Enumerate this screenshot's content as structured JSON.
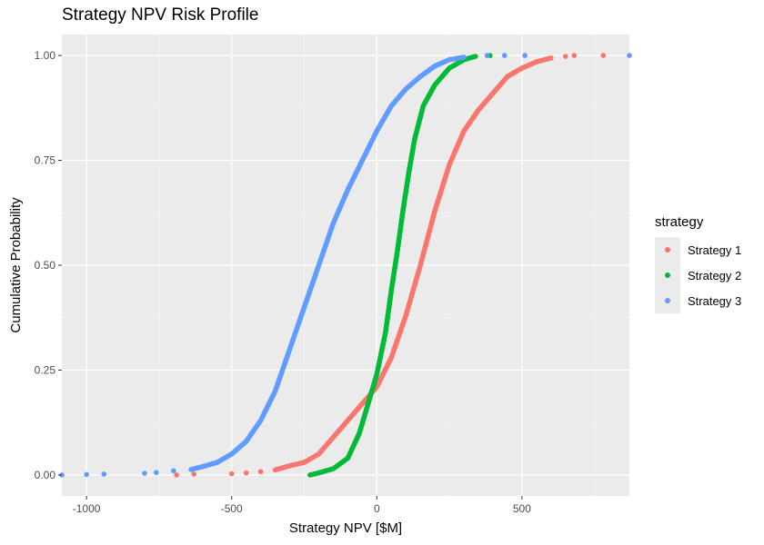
{
  "chart_data": {
    "type": "scatter",
    "title": "Strategy NPV Risk Profile",
    "xlabel": "Strategy NPV [$M]",
    "ylabel": "Cumulative Probability",
    "xlim": [
      -1085,
      870
    ],
    "ylim": [
      -0.05,
      1.05
    ],
    "xticks": [
      -1000,
      -500,
      0,
      500
    ],
    "xtick_labels": [
      "-1000",
      "-500",
      "0",
      "500"
    ],
    "yticks": [
      0.0,
      0.25,
      0.5,
      0.75,
      1.0
    ],
    "ytick_labels": [
      "0.00",
      "0.25",
      "0.50",
      "0.75",
      "1.00"
    ],
    "grid": true,
    "legend_title": "strategy",
    "legend_position": "right",
    "series": [
      {
        "name": "Strategy 1",
        "color": "#F8766D",
        "points": [
          [
            -690,
            0.0
          ],
          [
            -630,
            0.002
          ],
          [
            -500,
            0.003
          ],
          [
            -450,
            0.005
          ],
          [
            -400,
            0.008
          ],
          [
            -350,
            0.012
          ],
          [
            -300,
            0.022
          ],
          [
            -250,
            0.03
          ],
          [
            -200,
            0.05
          ],
          [
            -150,
            0.09
          ],
          [
            -100,
            0.13
          ],
          [
            -50,
            0.17
          ],
          [
            0,
            0.21
          ],
          [
            50,
            0.28
          ],
          [
            100,
            0.38
          ],
          [
            150,
            0.5
          ],
          [
            200,
            0.63
          ],
          [
            250,
            0.74
          ],
          [
            300,
            0.82
          ],
          [
            350,
            0.87
          ],
          [
            400,
            0.91
          ],
          [
            450,
            0.95
          ],
          [
            500,
            0.97
          ],
          [
            550,
            0.985
          ],
          [
            600,
            0.994
          ],
          [
            650,
            0.998
          ],
          [
            680,
            1.0
          ],
          [
            780,
            1.0
          ]
        ]
      },
      {
        "name": "Strategy 2",
        "color": "#00BA38",
        "points": [
          [
            -230,
            0.0
          ],
          [
            -200,
            0.005
          ],
          [
            -150,
            0.015
          ],
          [
            -100,
            0.04
          ],
          [
            -60,
            0.1
          ],
          [
            -30,
            0.17
          ],
          [
            0,
            0.24
          ],
          [
            30,
            0.34
          ],
          [
            50,
            0.44
          ],
          [
            70,
            0.53
          ],
          [
            90,
            0.63
          ],
          [
            110,
            0.72
          ],
          [
            130,
            0.8
          ],
          [
            160,
            0.88
          ],
          [
            200,
            0.93
          ],
          [
            250,
            0.97
          ],
          [
            300,
            0.99
          ],
          [
            340,
            0.998
          ],
          [
            390,
            1.0
          ]
        ]
      },
      {
        "name": "Strategy 3",
        "color": "#619CFF",
        "points": [
          [
            -1085,
            0.0
          ],
          [
            -1000,
            0.001
          ],
          [
            -940,
            0.002
          ],
          [
            -800,
            0.004
          ],
          [
            -760,
            0.006
          ],
          [
            -700,
            0.01
          ],
          [
            -640,
            0.013
          ],
          [
            -600,
            0.02
          ],
          [
            -550,
            0.03
          ],
          [
            -500,
            0.05
          ],
          [
            -450,
            0.08
          ],
          [
            -400,
            0.13
          ],
          [
            -350,
            0.2
          ],
          [
            -300,
            0.3
          ],
          [
            -250,
            0.4
          ],
          [
            -200,
            0.5
          ],
          [
            -150,
            0.6
          ],
          [
            -100,
            0.68
          ],
          [
            -50,
            0.75
          ],
          [
            0,
            0.82
          ],
          [
            50,
            0.88
          ],
          [
            100,
            0.92
          ],
          [
            150,
            0.95
          ],
          [
            200,
            0.975
          ],
          [
            250,
            0.99
          ],
          [
            300,
            0.996
          ],
          [
            380,
            1.0
          ],
          [
            440,
            1.0
          ],
          [
            510,
            1.0
          ],
          [
            870,
            1.0
          ]
        ]
      }
    ]
  }
}
